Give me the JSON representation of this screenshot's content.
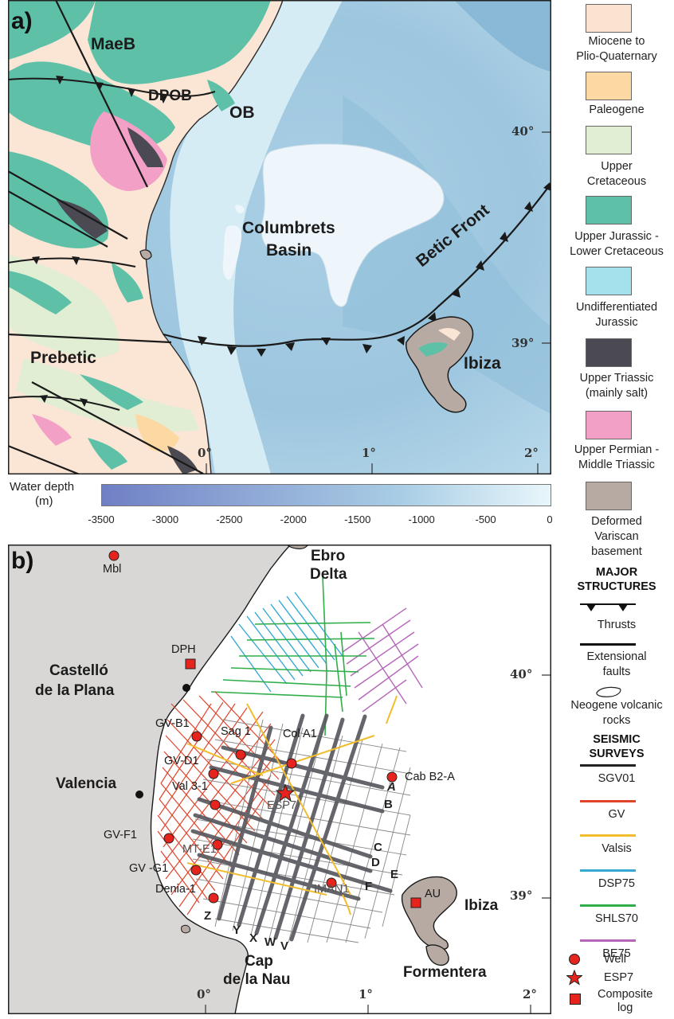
{
  "panel_a": {
    "letter": "a)",
    "labels": {
      "maeb": "MaeB",
      "dpob": "DPOB",
      "ob": "OB",
      "columbrets_1": "Columbrets",
      "columbrets_2": "Basin",
      "betic_front": "Betic Front",
      "prebetic": "Prebetic",
      "ibiza": "Ibiza"
    },
    "lat_ticks": [
      "40°",
      "39°"
    ],
    "lon_ticks": [
      "0°",
      "1°",
      "2°"
    ]
  },
  "depth_scale": {
    "title_1": "Water depth",
    "title_2": "(m)",
    "ticks": [
      "-3500",
      "-3000",
      "-2500",
      "-2000",
      "-1500",
      "-1000",
      "-500",
      "0"
    ],
    "color_deep": "#6f7fc4",
    "color_shallow": "#e8f6fb"
  },
  "panel_b": {
    "letter": "b)",
    "places": {
      "ebro_1": "Ebro",
      "ebro_2": "Delta",
      "castello_1": "Castelló",
      "castello_2": "de la Plana",
      "valencia": "Valencia",
      "cap_1": "Cap",
      "cap_2": "de la Nau",
      "ibiza": "Ibiza",
      "formentera": "Formentera"
    },
    "wells": {
      "mbl": "Mbl",
      "dph": "DPH",
      "gvb1": "GV-B1",
      "sag1": "Sag 1",
      "cola1": "Col A1",
      "gvd1": "GV-D1",
      "cabb2a": "Cab B2-A",
      "val31": "Val 3-1",
      "esp7": "ESP7",
      "gvf1": "GV-F1",
      "mte1": "MT-E1",
      "gvg1": "GV -G1",
      "iman1": "IMAN1",
      "denia1": "Denia-1",
      "au": "AU"
    },
    "profiles": {
      "A": "A",
      "B": "B",
      "C": "C",
      "D": "D",
      "E": "E",
      "F": "F",
      "Z": "Z",
      "Y": "Y",
      "X": "X",
      "W": "W",
      "V": "V"
    },
    "lat_ticks": [
      "40°",
      "39°"
    ],
    "lon_ticks": [
      "0°",
      "1°",
      "2°"
    ]
  },
  "legend": {
    "units": [
      {
        "label_1": "Miocene to",
        "label_2": "Plio-Quaternary",
        "color": "#fbe3d1"
      },
      {
        "label_1": "Paleogene",
        "label_2": "",
        "color": "#fcd9a2"
      },
      {
        "label_1": "Upper",
        "label_2": "Cretaceous",
        "color": "#e1eed3"
      },
      {
        "label_1": "Upper Jurassic -",
        "label_2": "Lower Cretaceous",
        "color": "#5ec1a7"
      },
      {
        "label_1": "Undifferentiated",
        "label_2": "Jurassic",
        "color": "#a3e1ec"
      },
      {
        "label_1": "Upper Triassic",
        "label_2": "(mainly salt)",
        "color": "#4b4a52"
      },
      {
        "label_1": "Upper Permian -",
        "label_2": "Middle Triassic",
        "color": "#f2a0c6"
      },
      {
        "label_1": "Deformed",
        "label_2": "Variscan",
        "label_3": "basement",
        "color": "#b7aaa3"
      }
    ],
    "major_structures_1": "MAJOR",
    "major_structures_2": "STRUCTURES",
    "thrusts": "Thrusts",
    "extensional_1": "Extensional",
    "extensional_2": "faults",
    "volcanic_1": "Neogene volcanic",
    "volcanic_2": "rocks",
    "seismic_1": "SEISMIC",
    "seismic_2": "SURVEYS",
    "surveys": [
      {
        "label": "SGV01",
        "color": "#222222"
      },
      {
        "label": "GV",
        "color": "#e0452c"
      },
      {
        "label": "Valsis",
        "color": "#f2bd2c"
      },
      {
        "label": "DSP75",
        "color": "#35a9d4"
      },
      {
        "label": "SHLS70",
        "color": "#2fae4a"
      },
      {
        "label": "BE75",
        "color": "#b565b8"
      }
    ],
    "well": "Well",
    "esp7": "ESP7",
    "composite_1": "Composite",
    "composite_2": "log"
  }
}
